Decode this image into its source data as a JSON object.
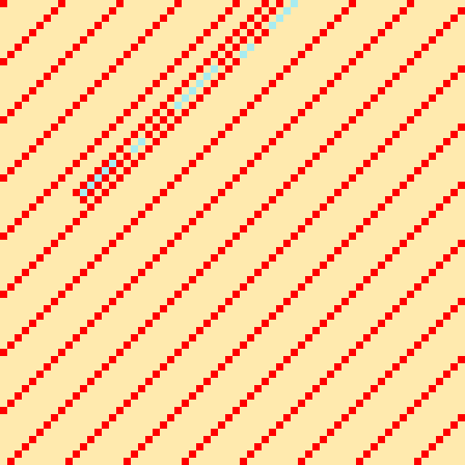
{
  "colors": {
    "background": "#ffeaae",
    "diagonal_cell": "#ff0000",
    "highlight_cell": "#a8ecf0"
  },
  "grid": {
    "columns": 64,
    "rows": 64,
    "diagonal_direction": "bottom-left-to-top-right",
    "diagonal_spacing_cells": 8
  },
  "highlight_segment": {
    "orientation": "diagonal",
    "start_cell": [
      11,
      26
    ],
    "end_cell": [
      40,
      0
    ],
    "cells": [
      [
        40,
        0
      ],
      [
        39,
        1
      ],
      [
        38,
        2
      ],
      [
        37,
        3
      ],
      [
        34,
        6
      ],
      [
        33,
        7
      ],
      [
        29,
        9
      ],
      [
        28,
        10
      ],
      [
        27,
        11
      ],
      [
        26,
        12
      ],
      [
        25,
        13
      ],
      [
        24,
        14
      ],
      [
        19,
        19
      ],
      [
        18,
        20
      ],
      [
        15,
        22
      ],
      [
        14,
        23
      ],
      [
        13,
        24
      ],
      [
        12,
        25
      ],
      [
        11,
        26
      ]
    ]
  }
}
